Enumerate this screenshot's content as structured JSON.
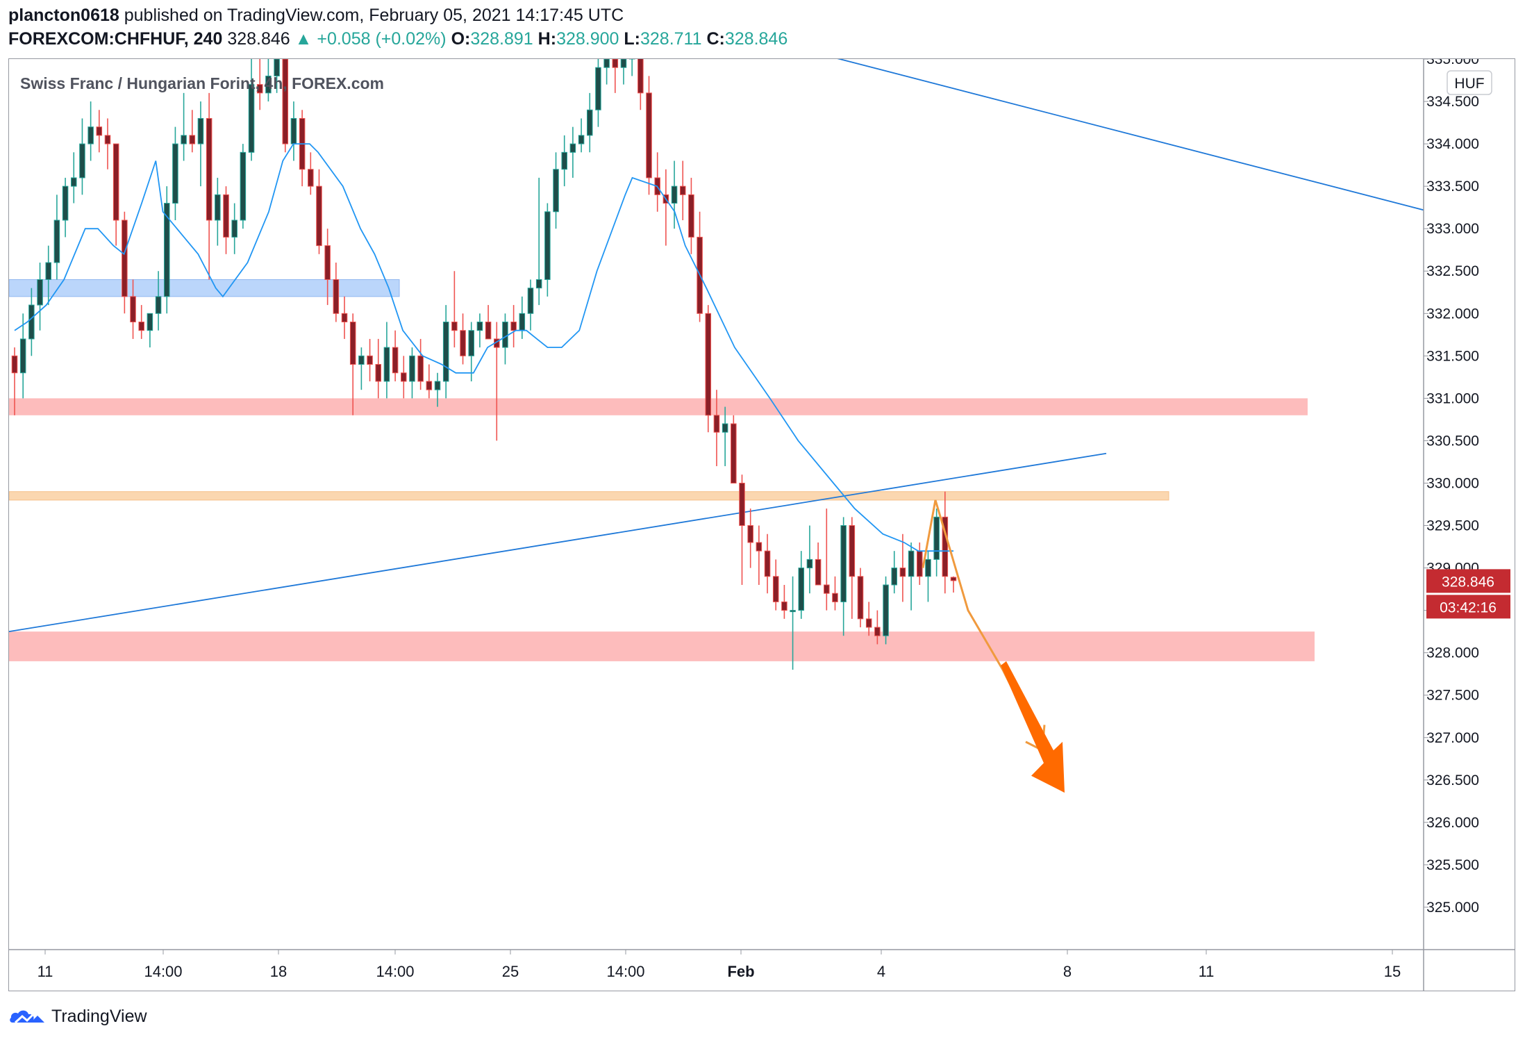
{
  "header": {
    "author": "plancton0618",
    "published_text": " published on TradingView.com, February 05, 2021 14:17:45 UTC",
    "symbol": "FOREXCOM:CHFHUF, 240",
    "last": "328.846",
    "change": "+0.058 (+0.02%)",
    "o_label": "O:",
    "o_value": "328.891",
    "h_label": "H:",
    "h_value": "328.900",
    "l_label": "L:",
    "l_value": "328.711",
    "c_label": "C:",
    "c_value": "328.846"
  },
  "footer": {
    "brand": "TradingView"
  },
  "colors": {
    "up": "#26a69a",
    "down": "#ef5350",
    "body_up": "#1e4e4a",
    "body_down": "#8b1f27",
    "ma": "#2196f3",
    "price_tag": "#c42b31"
  },
  "chart_data": {
    "type": "candlestick",
    "title": "Swiss Franc / Hungarian Forint, 4h, FOREX.com",
    "currency": "HUF",
    "ylim": [
      324.5,
      335.0
    ],
    "y_ticks": [
      "325.000",
      "325.500",
      "326.000",
      "326.500",
      "327.000",
      "327.500",
      "328.000",
      "328.500",
      "329.000",
      "329.500",
      "330.000",
      "330.500",
      "331.000",
      "331.500",
      "332.000",
      "332.500",
      "333.000",
      "333.500",
      "334.000",
      "334.500",
      "335.000"
    ],
    "x_ticks": [
      "11",
      "14:00",
      "18",
      "14:00",
      "25",
      "14:00",
      "Feb",
      "4",
      "8",
      "11",
      "15"
    ],
    "last_price_label": "328.846",
    "countdown_label": "03:42:16",
    "grid": false,
    "candles_ohlc": [
      [
        331.5,
        331.6,
        330.8,
        331.3
      ],
      [
        331.3,
        332.0,
        331.0,
        331.7
      ],
      [
        331.7,
        332.3,
        331.5,
        332.1
      ],
      [
        332.1,
        332.6,
        331.8,
        332.4
      ],
      [
        332.4,
        332.8,
        332.1,
        332.6
      ],
      [
        332.6,
        333.4,
        332.4,
        333.1
      ],
      [
        333.1,
        333.6,
        332.9,
        333.5
      ],
      [
        333.5,
        333.9,
        333.3,
        333.6
      ],
      [
        333.6,
        334.3,
        333.4,
        334.0
      ],
      [
        334.0,
        334.5,
        333.8,
        334.2
      ],
      [
        334.2,
        334.4,
        333.9,
        334.1
      ],
      [
        334.1,
        334.3,
        333.7,
        334.0
      ],
      [
        334.0,
        334.0,
        332.8,
        333.1
      ],
      [
        333.1,
        333.2,
        332.0,
        332.2
      ],
      [
        332.2,
        332.4,
        331.7,
        331.9
      ],
      [
        331.9,
        332.1,
        331.7,
        331.8
      ],
      [
        331.8,
        332.0,
        331.6,
        332.0
      ],
      [
        332.0,
        332.5,
        331.8,
        332.2
      ],
      [
        332.2,
        333.5,
        332.0,
        333.3
      ],
      [
        333.3,
        334.2,
        333.1,
        334.0
      ],
      [
        334.0,
        334.6,
        333.8,
        334.1
      ],
      [
        334.1,
        334.4,
        333.9,
        334.0
      ],
      [
        334.0,
        334.5,
        333.5,
        334.3
      ],
      [
        334.3,
        334.6,
        332.4,
        333.1
      ],
      [
        333.1,
        333.6,
        332.8,
        333.4
      ],
      [
        333.4,
        333.5,
        332.7,
        332.9
      ],
      [
        332.9,
        333.3,
        332.7,
        333.1
      ],
      [
        333.1,
        334.0,
        333.0,
        333.9
      ],
      [
        333.9,
        335.1,
        333.8,
        334.7
      ],
      [
        334.7,
        335.0,
        334.4,
        334.6
      ],
      [
        334.6,
        335.0,
        334.5,
        334.8
      ],
      [
        334.8,
        335.2,
        334.6,
        335.0
      ],
      [
        335.0,
        335.1,
        333.9,
        334.0
      ],
      [
        334.0,
        334.5,
        333.8,
        334.3
      ],
      [
        334.3,
        334.4,
        333.5,
        333.7
      ],
      [
        333.7,
        333.9,
        333.4,
        333.5
      ],
      [
        333.5,
        333.7,
        332.7,
        332.8
      ],
      [
        332.8,
        333.0,
        332.1,
        332.4
      ],
      [
        332.4,
        332.6,
        331.9,
        332.0
      ],
      [
        332.0,
        332.2,
        331.7,
        331.9
      ],
      [
        331.9,
        332.0,
        330.8,
        331.4
      ],
      [
        331.4,
        331.6,
        331.1,
        331.5
      ],
      [
        331.5,
        331.7,
        331.2,
        331.4
      ],
      [
        331.4,
        331.7,
        331.0,
        331.2
      ],
      [
        331.2,
        331.9,
        331.0,
        331.6
      ],
      [
        331.6,
        331.8,
        331.2,
        331.3
      ],
      [
        331.3,
        331.5,
        331.0,
        331.2
      ],
      [
        331.2,
        331.6,
        331.0,
        331.5
      ],
      [
        331.5,
        331.7,
        331.1,
        331.2
      ],
      [
        331.2,
        331.4,
        331.0,
        331.1
      ],
      [
        331.1,
        331.3,
        330.9,
        331.2
      ],
      [
        331.2,
        332.1,
        331.0,
        331.9
      ],
      [
        331.9,
        332.5,
        331.6,
        331.8
      ],
      [
        331.8,
        332.0,
        331.4,
        331.5
      ],
      [
        331.5,
        331.9,
        331.2,
        331.8
      ],
      [
        331.8,
        332.0,
        331.6,
        331.9
      ],
      [
        331.9,
        332.1,
        331.7,
        331.7
      ],
      [
        331.7,
        331.9,
        330.5,
        331.6
      ],
      [
        331.6,
        332.0,
        331.4,
        331.9
      ],
      [
        331.9,
        332.1,
        331.6,
        331.8
      ],
      [
        331.8,
        332.2,
        331.7,
        332.0
      ],
      [
        332.0,
        332.4,
        331.8,
        332.3
      ],
      [
        332.3,
        333.6,
        332.1,
        332.4
      ],
      [
        332.4,
        333.3,
        332.2,
        333.2
      ],
      [
        333.2,
        333.9,
        333.0,
        333.7
      ],
      [
        333.7,
        334.1,
        333.5,
        333.9
      ],
      [
        333.9,
        334.2,
        333.6,
        334.0
      ],
      [
        334.0,
        334.3,
        333.9,
        334.1
      ],
      [
        334.1,
        334.6,
        333.9,
        334.4
      ],
      [
        334.4,
        335.0,
        334.2,
        334.9
      ],
      [
        334.9,
        335.1,
        334.7,
        335.0
      ],
      [
        335.0,
        335.2,
        334.6,
        334.9
      ],
      [
        334.9,
        335.1,
        334.7,
        335.0
      ],
      [
        335.0,
        335.3,
        334.8,
        335.1
      ],
      [
        335.1,
        335.3,
        334.4,
        334.6
      ],
      [
        334.6,
        334.8,
        333.4,
        333.6
      ],
      [
        333.6,
        333.9,
        333.2,
        333.4
      ],
      [
        333.4,
        333.7,
        332.8,
        333.3
      ],
      [
        333.3,
        333.8,
        333.0,
        333.5
      ],
      [
        333.5,
        333.8,
        333.1,
        333.4
      ],
      [
        333.4,
        333.6,
        332.7,
        332.9
      ],
      [
        332.9,
        333.2,
        331.9,
        332.0
      ],
      [
        332.0,
        332.1,
        330.6,
        330.8
      ],
      [
        330.8,
        331.1,
        330.2,
        330.6
      ],
      [
        330.6,
        330.9,
        330.2,
        330.7
      ],
      [
        330.7,
        330.8,
        330.1,
        330.0
      ],
      [
        330.0,
        330.1,
        328.8,
        329.5
      ],
      [
        329.5,
        329.7,
        329.0,
        329.3
      ],
      [
        329.3,
        329.5,
        328.8,
        329.2
      ],
      [
        329.2,
        329.4,
        328.7,
        328.9
      ],
      [
        328.9,
        329.1,
        328.5,
        328.6
      ],
      [
        328.6,
        328.8,
        328.4,
        328.5
      ],
      [
        328.5,
        328.9,
        327.8,
        328.5
      ],
      [
        328.5,
        329.2,
        328.4,
        329.0
      ],
      [
        329.0,
        329.5,
        328.7,
        329.1
      ],
      [
        329.1,
        329.3,
        328.8,
        328.8
      ],
      [
        328.8,
        329.7,
        328.5,
        328.7
      ],
      [
        328.7,
        328.9,
        328.5,
        328.6
      ],
      [
        328.6,
        329.6,
        328.2,
        329.5
      ],
      [
        329.5,
        329.6,
        328.4,
        328.9
      ],
      [
        328.9,
        329.0,
        328.3,
        328.4
      ],
      [
        328.4,
        328.6,
        328.2,
        328.3
      ],
      [
        328.3,
        328.5,
        328.1,
        328.2
      ],
      [
        328.2,
        328.9,
        328.1,
        328.8
      ],
      [
        328.8,
        329.2,
        328.7,
        329.0
      ],
      [
        329.0,
        329.4,
        328.6,
        328.9
      ],
      [
        328.9,
        329.3,
        328.5,
        329.2
      ],
      [
        329.2,
        329.3,
        328.8,
        328.9
      ],
      [
        328.9,
        329.2,
        328.6,
        329.1
      ],
      [
        329.1,
        329.7,
        328.9,
        329.6
      ],
      [
        329.6,
        329.9,
        328.7,
        328.9
      ],
      [
        328.89,
        328.9,
        328.71,
        328.85
      ]
    ],
    "ma_series": [
      331.8,
      331.9,
      332.1,
      332.4,
      332.8,
      333.0,
      333.0,
      332.8,
      332.7,
      333.3,
      333.8,
      333.2,
      332.9,
      332.7,
      332.3,
      332.2,
      332.6,
      333.2,
      333.8,
      334.0,
      334.0,
      333.9,
      333.5,
      333.0,
      332.7,
      332.3,
      331.8,
      331.5,
      331.4,
      331.3,
      331.3,
      331.6,
      331.8,
      331.8,
      331.7,
      331.6,
      331.6,
      331.8,
      332.5,
      333.4,
      333.6,
      333.5,
      333.2,
      332.8,
      332.3,
      331.6,
      331.0,
      330.5,
      330.0,
      329.7,
      329.4,
      329.3,
      329.2,
      329.2
    ],
    "ma_x_frac": [
      0.0,
      0.018,
      0.045,
      0.07,
      0.09,
      0.1,
      0.118,
      0.14,
      0.155,
      0.18,
      0.2,
      0.21,
      0.24,
      0.26,
      0.285,
      0.295,
      0.33,
      0.36,
      0.38,
      0.395,
      0.418,
      0.43,
      0.465,
      0.49,
      0.51,
      0.53,
      0.55,
      0.578,
      0.605,
      0.625,
      0.65,
      0.67,
      0.71,
      0.725,
      0.74,
      0.755,
      0.775,
      0.8,
      0.825,
      0.865,
      0.875,
      0.91,
      0.935,
      0.95,
      0.98,
      1.02,
      1.07,
      1.11,
      1.16,
      1.19,
      1.23,
      1.26,
      1.28,
      1.33
    ],
    "zones": [
      {
        "type": "support-blue",
        "from": 332.2,
        "to": 332.4
      },
      {
        "type": "resistance-red",
        "from": 330.8,
        "to": 331.0
      },
      {
        "type": "orange-band",
        "from": 329.8,
        "to": 329.9
      },
      {
        "type": "support-red",
        "from": 327.9,
        "to": 328.25
      }
    ],
    "trend_lines": [
      {
        "from": [
          0.0,
          328.25
        ],
        "to": [
          1.0,
          330.35
        ]
      },
      {
        "from": [
          0.0,
          335.5
        ],
        "to": [
          1.0,
          333.22
        ]
      }
    ]
  }
}
